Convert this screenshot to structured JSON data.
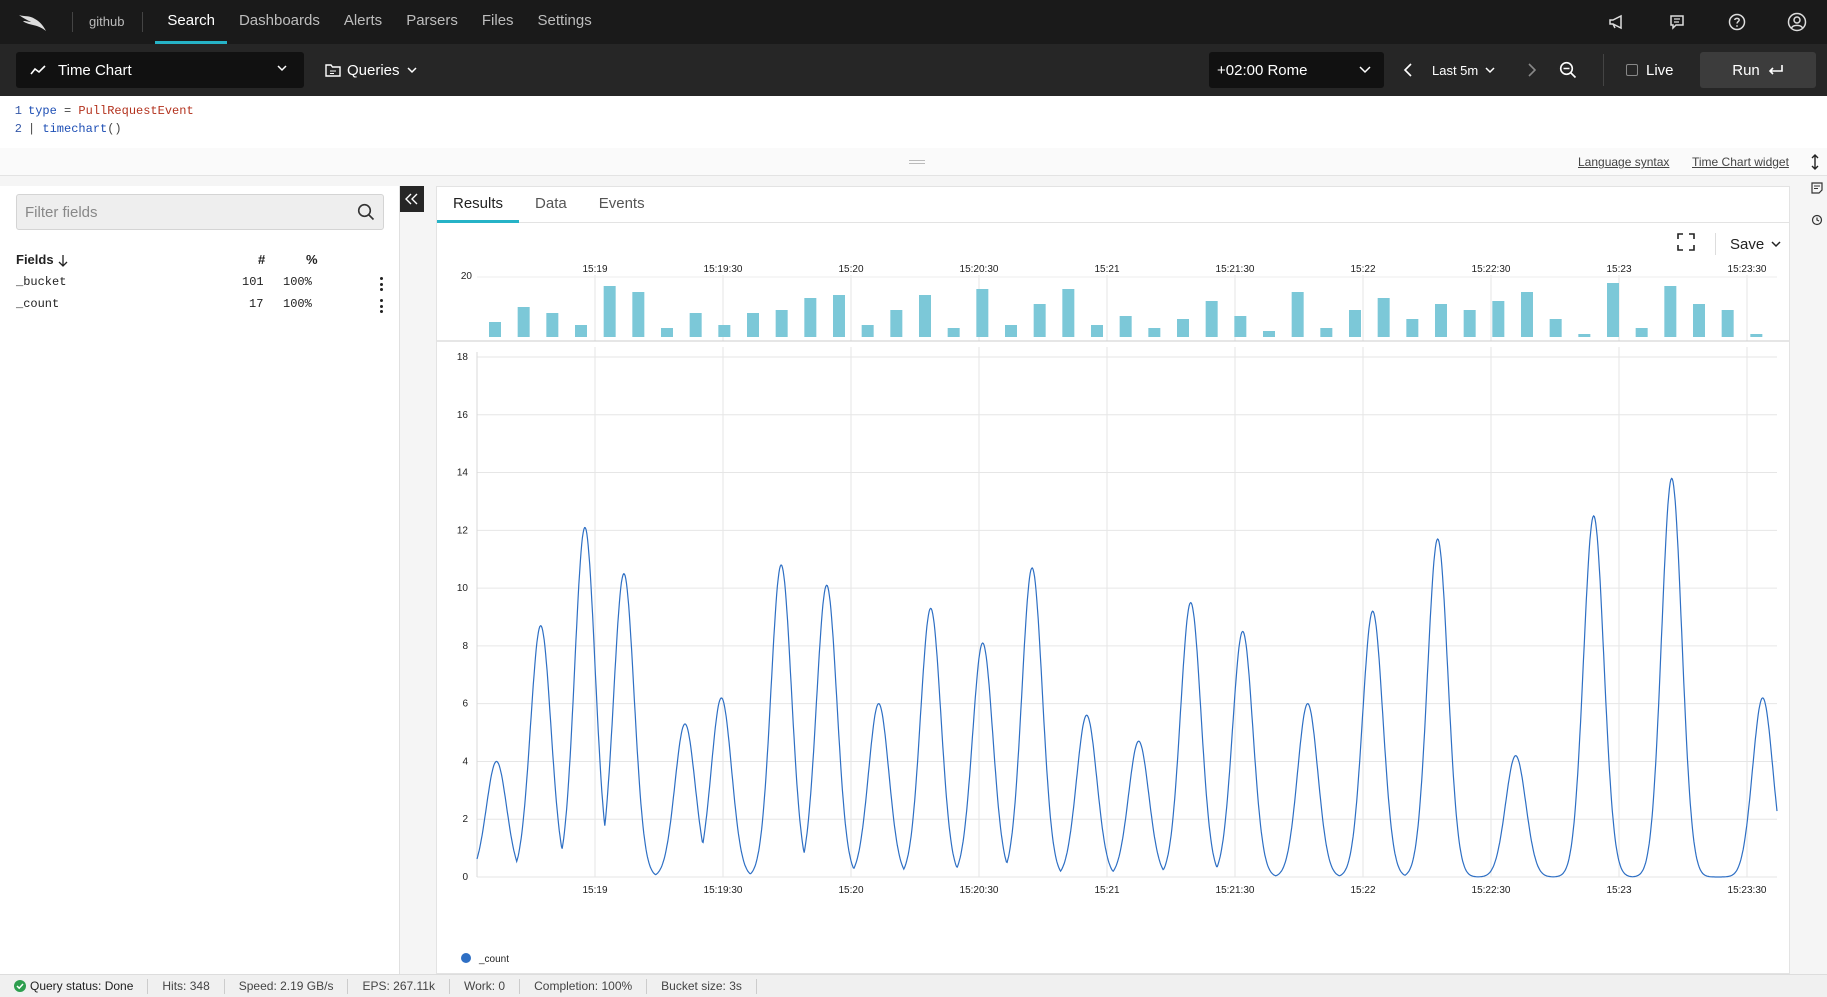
{
  "nav": {
    "repo": "github",
    "links": [
      "Search",
      "Dashboards",
      "Alerts",
      "Parsers",
      "Files",
      "Settings"
    ],
    "active": "Search"
  },
  "toolbar": {
    "viz_label": "Time Chart",
    "queries_label": "Queries",
    "timezone": "+02:00 Rome",
    "range_label": "Last 5m",
    "live_label": "Live",
    "run_label": "Run"
  },
  "editor": {
    "line1": {
      "num": "1",
      "kw": "type",
      "op": " = ",
      "value": "PullRequestEvent"
    },
    "line2": {
      "num": "2",
      "pipe": "| ",
      "fn": "timechart",
      "args": "()"
    }
  },
  "editor_links": {
    "syntax": "Language syntax",
    "widget": "Time Chart widget"
  },
  "sidebar": {
    "filter_placeholder": "Filter fields",
    "header": {
      "fields": "Fields",
      "count": "#",
      "pct": "%"
    },
    "rows": [
      {
        "name": "_bucket",
        "count": "101",
        "pct": "100%"
      },
      {
        "name": "_count",
        "count": "17",
        "pct": "100%"
      }
    ]
  },
  "results": {
    "tabs": [
      "Results",
      "Data",
      "Events"
    ],
    "active_tab": "Results",
    "save_label": "Save"
  },
  "chart_data": {
    "type": "line",
    "series": [
      {
        "name": "_count",
        "color": "#2e6fc4"
      }
    ],
    "x_ticks": [
      "15:19",
      "15:19:30",
      "15:20",
      "15:20:30",
      "15:21",
      "15:21:30",
      "15:22",
      "15:22:30",
      "15:23",
      "15:23:30"
    ],
    "ylim": [
      0,
      18
    ],
    "y_ticks": [
      0,
      2,
      4,
      6,
      8,
      10,
      12,
      14,
      16,
      18
    ],
    "peaks": [
      {
        "x": 1.5,
        "y": 4.0
      },
      {
        "x": 4.9,
        "y": 8.7
      },
      {
        "x": 8.3,
        "y": 12.1
      },
      {
        "x": 11.3,
        "y": 10.5
      },
      {
        "x": 16.0,
        "y": 5.3
      },
      {
        "x": 18.8,
        "y": 6.2
      },
      {
        "x": 23.4,
        "y": 10.8
      },
      {
        "x": 26.9,
        "y": 10.1
      },
      {
        "x": 30.9,
        "y": 6.0
      },
      {
        "x": 34.9,
        "y": 9.3
      },
      {
        "x": 38.9,
        "y": 8.1
      },
      {
        "x": 42.7,
        "y": 10.7
      },
      {
        "x": 46.9,
        "y": 5.6
      },
      {
        "x": 50.9,
        "y": 4.7
      },
      {
        "x": 54.9,
        "y": 9.5
      },
      {
        "x": 58.9,
        "y": 8.5
      },
      {
        "x": 63.9,
        "y": 6.0
      },
      {
        "x": 68.9,
        "y": 9.2
      },
      {
        "x": 73.9,
        "y": 11.7
      },
      {
        "x": 79.9,
        "y": 4.2
      },
      {
        "x": 85.9,
        "y": 12.5
      },
      {
        "x": 91.9,
        "y": 13.8
      },
      {
        "x": 98.9,
        "y": 6.2
      }
    ],
    "overview": {
      "y_label": "20",
      "bars": [
        5,
        10,
        8,
        4,
        17,
        15,
        3,
        8,
        4,
        8,
        9,
        13,
        14,
        4,
        9,
        14,
        3,
        16,
        4,
        11,
        16,
        4,
        7,
        3,
        6,
        12,
        7,
        2,
        15,
        3,
        9,
        13,
        6,
        11,
        9,
        12,
        15,
        6,
        1,
        18,
        3,
        17,
        11,
        9,
        1
      ]
    }
  },
  "status": {
    "query_status": "Query status: Done",
    "hits": "Hits: 348",
    "speed": "Speed: 2.19 GB/s",
    "eps": "EPS: 267.11k",
    "work": "Work: 0",
    "completion": "Completion: 100%",
    "bucket_size": "Bucket size: 3s"
  }
}
